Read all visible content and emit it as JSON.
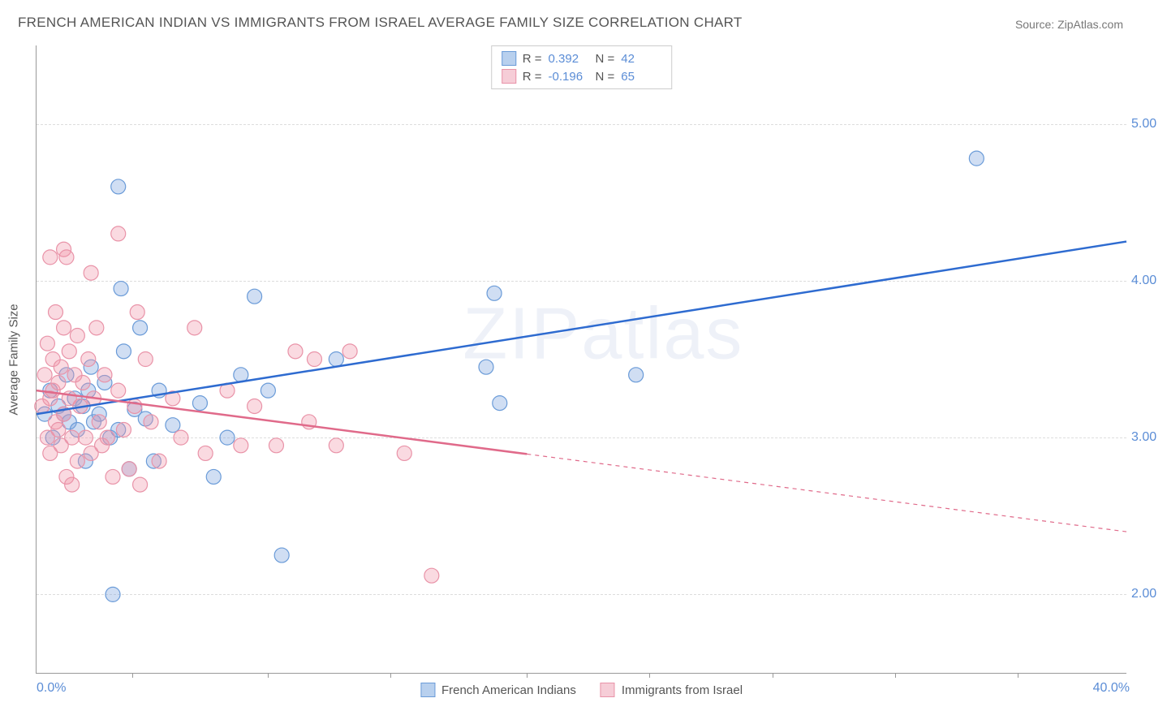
{
  "title": "FRENCH AMERICAN INDIAN VS IMMIGRANTS FROM ISRAEL AVERAGE FAMILY SIZE CORRELATION CHART",
  "source": "Source: ZipAtlas.com",
  "watermark": "ZIPatlas",
  "ylabel": "Average Family Size",
  "chart": {
    "type": "scatter",
    "xlim": [
      0,
      40
    ],
    "ylim": [
      1.5,
      5.5
    ],
    "xaxis_min_label": "0.0%",
    "xaxis_max_label": "40.0%",
    "ytick_values": [
      2.0,
      3.0,
      4.0,
      5.0
    ],
    "ytick_labels": [
      "2.00",
      "3.00",
      "4.00",
      "5.00"
    ],
    "xtick_positions": [
      3.5,
      8.5,
      13,
      18,
      22.5,
      27,
      31.5,
      36
    ],
    "grid_color": "#dddddd",
    "axis_color": "#999999",
    "background_color": "#ffffff",
    "marker_radius": 9,
    "marker_stroke_width": 1.2,
    "trend_line_width": 2.5,
    "series": [
      {
        "name": "French American Indians",
        "fill_color": "rgba(120,160,220,0.35)",
        "stroke_color": "#6a9bd8",
        "line_color": "#2e6bd0",
        "swatch_fill": "#b8d0ee",
        "swatch_border": "#6a9bd8",
        "R": "0.392",
        "N": "42",
        "trend": {
          "x1": 0,
          "y1": 3.15,
          "x2": 40,
          "y2": 4.25
        },
        "trend_solid_until_x": 40,
        "points": [
          [
            0.3,
            3.15
          ],
          [
            0.5,
            3.3
          ],
          [
            0.6,
            3.0
          ],
          [
            0.8,
            3.2
          ],
          [
            1.0,
            3.15
          ],
          [
            1.1,
            3.4
          ],
          [
            1.2,
            3.1
          ],
          [
            1.4,
            3.25
          ],
          [
            1.5,
            3.05
          ],
          [
            1.7,
            3.2
          ],
          [
            1.9,
            3.3
          ],
          [
            2.1,
            3.1
          ],
          [
            2.3,
            3.15
          ],
          [
            2.5,
            3.35
          ],
          [
            2.7,
            3.0
          ],
          [
            3.0,
            4.6
          ],
          [
            3.0,
            3.05
          ],
          [
            3.1,
            3.95
          ],
          [
            3.2,
            3.55
          ],
          [
            3.4,
            2.8
          ],
          [
            3.6,
            3.18
          ],
          [
            3.8,
            3.7
          ],
          [
            4.0,
            3.12
          ],
          [
            4.3,
            2.85
          ],
          [
            4.5,
            3.3
          ],
          [
            5.0,
            3.08
          ],
          [
            2.8,
            2.0
          ],
          [
            6.0,
            3.22
          ],
          [
            6.5,
            2.75
          ],
          [
            7.0,
            3.0
          ],
          [
            7.5,
            3.4
          ],
          [
            8.0,
            3.9
          ],
          [
            8.5,
            3.3
          ],
          [
            9.0,
            2.25
          ],
          [
            11.0,
            3.5
          ],
          [
            16.5,
            3.45
          ],
          [
            17.0,
            3.22
          ],
          [
            16.8,
            3.92
          ],
          [
            22.0,
            3.4
          ],
          [
            34.5,
            4.78
          ],
          [
            1.8,
            2.85
          ],
          [
            2.0,
            3.45
          ]
        ]
      },
      {
        "name": "Immigrants from Israel",
        "fill_color": "rgba(240,150,170,0.35)",
        "stroke_color": "#e993a8",
        "line_color": "#e06a8a",
        "swatch_fill": "#f6cdd7",
        "swatch_border": "#e993a8",
        "R": "-0.196",
        "N": "65",
        "trend": {
          "x1": 0,
          "y1": 3.3,
          "x2": 40,
          "y2": 2.4
        },
        "trend_solid_until_x": 18,
        "points": [
          [
            0.2,
            3.2
          ],
          [
            0.3,
            3.4
          ],
          [
            0.4,
            3.0
          ],
          [
            0.4,
            3.6
          ],
          [
            0.5,
            3.25
          ],
          [
            0.5,
            2.9
          ],
          [
            0.6,
            3.3
          ],
          [
            0.6,
            3.5
          ],
          [
            0.7,
            3.1
          ],
          [
            0.7,
            3.8
          ],
          [
            0.8,
            3.05
          ],
          [
            0.8,
            3.35
          ],
          [
            0.9,
            2.95
          ],
          [
            0.9,
            3.45
          ],
          [
            1.0,
            4.2
          ],
          [
            1.0,
            3.15
          ],
          [
            1.1,
            4.15
          ],
          [
            1.1,
            2.75
          ],
          [
            1.2,
            3.25
          ],
          [
            1.2,
            3.55
          ],
          [
            1.3,
            3.0
          ],
          [
            1.3,
            2.7
          ],
          [
            1.4,
            3.4
          ],
          [
            1.5,
            3.65
          ],
          [
            1.5,
            2.85
          ],
          [
            1.6,
            3.2
          ],
          [
            1.7,
            3.35
          ],
          [
            1.8,
            3.0
          ],
          [
            1.9,
            3.5
          ],
          [
            2.0,
            2.9
          ],
          [
            2.1,
            3.25
          ],
          [
            2.2,
            3.7
          ],
          [
            2.3,
            3.1
          ],
          [
            2.4,
            2.95
          ],
          [
            2.5,
            3.4
          ],
          [
            2.6,
            3.0
          ],
          [
            2.0,
            4.05
          ],
          [
            2.8,
            2.75
          ],
          [
            3.0,
            3.3
          ],
          [
            3.0,
            4.3
          ],
          [
            3.2,
            3.05
          ],
          [
            3.4,
            2.8
          ],
          [
            3.6,
            3.2
          ],
          [
            3.8,
            2.7
          ],
          [
            3.7,
            3.8
          ],
          [
            4.0,
            3.5
          ],
          [
            4.2,
            3.1
          ],
          [
            4.5,
            2.85
          ],
          [
            5.0,
            3.25
          ],
          [
            5.3,
            3.0
          ],
          [
            5.8,
            3.7
          ],
          [
            6.2,
            2.9
          ],
          [
            7.0,
            3.3
          ],
          [
            7.5,
            2.95
          ],
          [
            8.0,
            3.2
          ],
          [
            8.8,
            2.95
          ],
          [
            9.5,
            3.55
          ],
          [
            10.0,
            3.1
          ],
          [
            10.2,
            3.5
          ],
          [
            11.0,
            2.95
          ],
          [
            11.5,
            3.55
          ],
          [
            13.5,
            2.9
          ],
          [
            14.5,
            2.12
          ],
          [
            1.0,
            3.7
          ],
          [
            0.5,
            4.15
          ]
        ]
      }
    ]
  },
  "legend_bottom": [
    {
      "label": "French American Indians",
      "series_idx": 0
    },
    {
      "label": "Immigrants from Israel",
      "series_idx": 1
    }
  ]
}
